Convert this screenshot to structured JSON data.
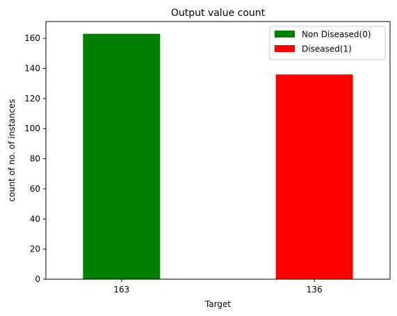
{
  "chart_data": {
    "type": "bar",
    "title": "Output value count",
    "xlabel": "Target",
    "ylabel": "count of no. of instances",
    "categories": [
      "163",
      "136"
    ],
    "values": [
      163,
      136
    ],
    "colors": [
      "#008000",
      "#ff0000"
    ],
    "ylim": [
      0,
      171.15
    ],
    "yticks": [
      0,
      20,
      40,
      60,
      80,
      100,
      120,
      140,
      160
    ],
    "grid": false,
    "legend": {
      "placement": "top-right",
      "entries": [
        {
          "label": "Non Diseased(0)",
          "color": "#008000"
        },
        {
          "label": "Diseased(1)",
          "color": "#ff0000"
        }
      ]
    }
  }
}
